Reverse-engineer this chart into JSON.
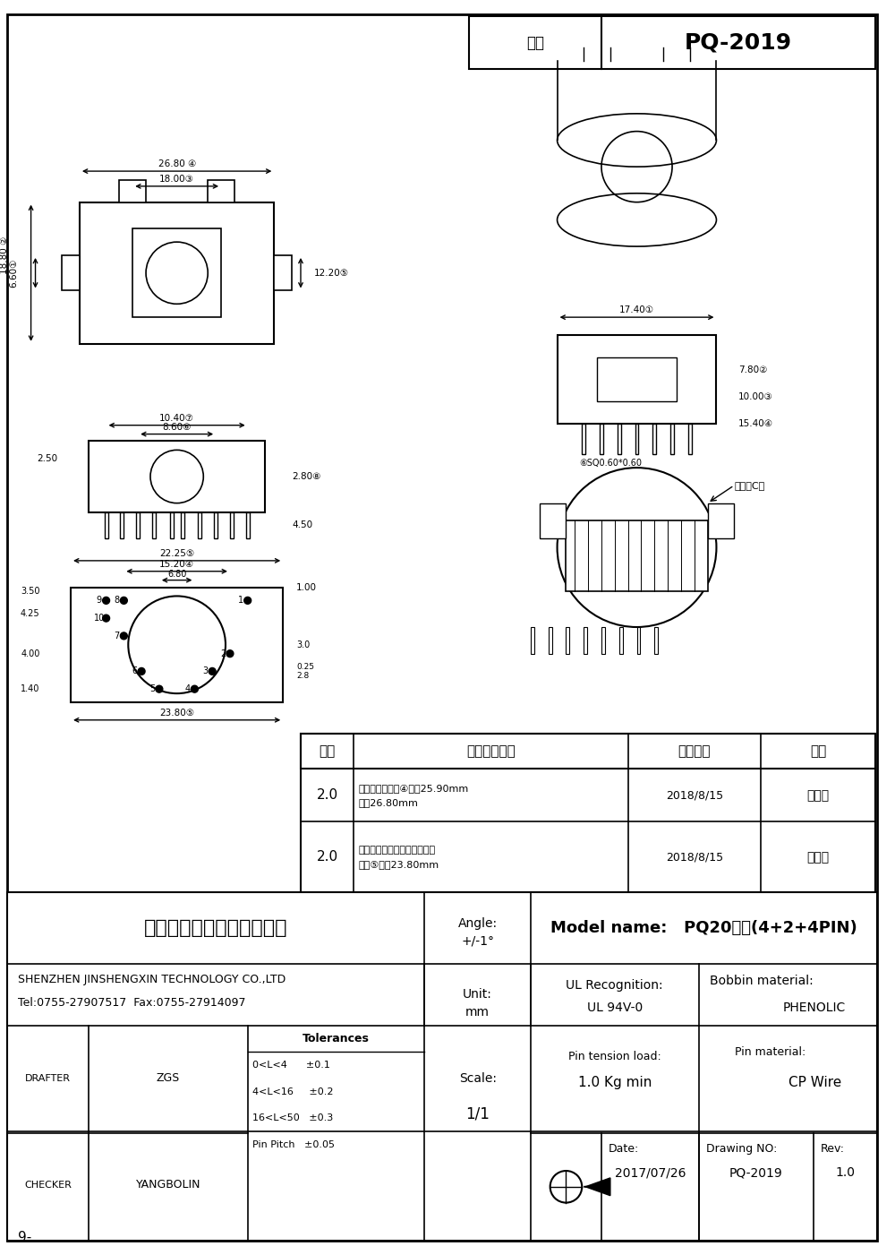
{
  "title_box": {
    "type_label": "型号",
    "model": "PQ-2019"
  },
  "company": {
    "chinese": "深圳市金盛鑫科技有限公司",
    "english": "SHENZHEN JINSHENGXIN TECHNOLOGY CO.,LTD",
    "tel": "Tel:0755-27907517  Fax:0755-27914097"
  },
  "angle": "Angle:\n+/-1°",
  "unit": "Unit:\n\nmm",
  "scale": "Scale:\n\n1/1",
  "model_name": "Model name:   PQ20立式(4+2+4PIN)",
  "ul": "UL Recognition:\n     UL 94V-0",
  "bobbin": "Bobbin material:\n            PHENOLIC",
  "drafter": "DRAFTER",
  "drafter_name": "ZGS",
  "checker": "CHECKER",
  "checker_name": "YANGBOLIN",
  "tolerances_title": "Tolerances",
  "tolerances": [
    "0<L<4      ±0.1",
    "4<L<16     ±0.2",
    "16<L<50   ±0.3",
    "Pin Pitch   ±0.05"
  ],
  "pin_tension": "Pin tension load:\n   1.0 Kg min",
  "pin_material": "Pin material:\n           CP Wire",
  "date_label": "Date:",
  "date": "2017/07/26",
  "drawing_no_label": "Drawing NO:",
  "drawing_no": "PQ-2019",
  "rev_label": "Rev:",
  "rev": "1.0",
  "change_table": {
    "headers": [
      "版本",
      "产品变更原因",
      "变更日期",
      "确认"
    ],
    "rows": [
      [
        "2.0",
        "根据客户要求，④尺寸25.90mm\n改成26.80mm",
        "2018/8/15",
        "刘辰逸"
      ],
      [
        "2.0",
        "根据客户要求，新增加一个排\n距，⑤尺寸23.80mm",
        "2018/8/15",
        "刘辰逸"
      ]
    ]
  },
  "page_number": "9-",
  "bg_color": "#ffffff",
  "line_color": "#000000",
  "border_color": "#000000"
}
